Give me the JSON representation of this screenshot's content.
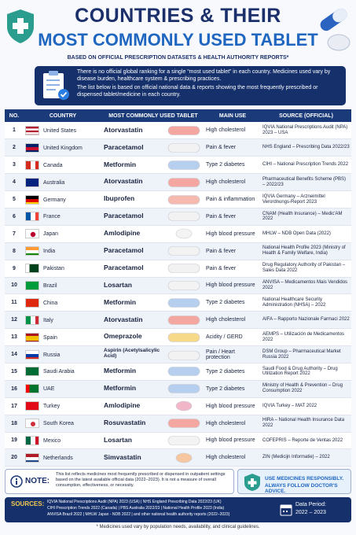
{
  "header": {
    "title_line1": "COUNTRIES & THEIR",
    "title_line2": "MOST COMMONLY USED TABLET",
    "subtitle": "BASED ON OFFICIAL PRESCRIPTION DATASETS & HEALTH AUTHORITY REPORTS*"
  },
  "info": {
    "paragraph1": "There is no official global ranking for a single “most used tablet” in each country. Medicines used vary by disease burden, healthcare system & prescribing practices.",
    "paragraph2": "The list below is based on official national data & reports showing the most frequently prescribed or dispensed tablet/medicine in each country."
  },
  "table": {
    "columns": [
      "NO.",
      "COUNTRY",
      "MOST COMMONLY USED TABLET",
      "MAIN USE",
      "SOURCE (OFFICIAL)"
    ],
    "rows": [
      [
        1,
        "United States",
        "Atorvastatin",
        "High cholesterol",
        "IQVIA National Prescriptions Audit (NPA) 2023 – USA"
      ],
      [
        2,
        "United Kingdom",
        "Paracetamol",
        "Pain & fever",
        "NHS England – Prescribing Data 2022/23"
      ],
      [
        3,
        "Canada",
        "Metformin",
        "Type 2 diabetes",
        "CIHI – National Prescription Trends 2022"
      ],
      [
        4,
        "Australia",
        "Atorvastatin",
        "High cholesterol",
        "Pharmaceutical Benefits Scheme (PBS) – 2022/23"
      ],
      [
        5,
        "Germany",
        "Ibuprofen",
        "Pain & inflammation",
        "IQVIA Germany – Arzneimittel Verordnungs-Report 2023"
      ],
      [
        6,
        "France",
        "Paracetamol",
        "Pain & fever",
        "CNAM (Health Insurance) – Medic'AM 2022"
      ],
      [
        7,
        "Japan",
        "Amlodipine",
        "High blood pressure",
        "MHLW – NDB Open Data (2022)"
      ],
      [
        8,
        "India",
        "Paracetamol",
        "Pain & fever",
        "National Health Profile 2023 (Ministry of Health & Family Welfare, India)"
      ],
      [
        9,
        "Pakistan",
        "Paracetamol",
        "Pain & fever",
        "Drug Regulatory Authority of Pakistan – Sales Data 2022"
      ],
      [
        10,
        "Brazil",
        "Losartan",
        "High blood pressure",
        "ANVISA – Medicamentos Mais Vendidos 2022"
      ],
      [
        11,
        "China",
        "Metformin",
        "Type 2 diabetes",
        "National Healthcare Security Administration (NHSA) – 2022"
      ],
      [
        12,
        "Italy",
        "Atorvastatin",
        "High cholesterol",
        "AIFA – Rapporto Nazionale Farmaci 2022"
      ],
      [
        13,
        "Spain",
        "Omeprazole",
        "Acidity / GERD",
        "AEMPS – Utilización de Medicamentos 2022"
      ],
      [
        14,
        "Russia",
        "Aspirin (Acetylsalicylic Acid)",
        "Pain / Heart protection",
        "DSM Group – Pharmaceutical Market Russia 2022"
      ],
      [
        15,
        "Saudi Arabia",
        "Metformin",
        "Type 2 diabetes",
        "Saudi Food & Drug Authority – Drug Utilization Report 2022"
      ],
      [
        16,
        "UAE",
        "Metformin",
        "Type 2 diabetes",
        "Ministry of Health & Prevention – Drug Consumption 2022"
      ],
      [
        17,
        "Turkey",
        "Amlodipine",
        "High blood pressure",
        "IQVIA Turkey – MAT 2022"
      ],
      [
        18,
        "South Korea",
        "Rosuvastatin",
        "High cholesterol",
        "HIRA – National Health Insurance Data 2022"
      ],
      [
        19,
        "Mexico",
        "Losartan",
        "High blood pressure",
        "COFEPRIS – Reporte de Ventas 2022"
      ],
      [
        20,
        "Netherlands",
        "Simvastatin",
        "High cholesterol",
        "ZIN (Medicijn Informatie) – 2022"
      ]
    ]
  },
  "note": {
    "label": "NOTE:",
    "text": "This list reflects medicines most frequently prescribed or dispensed in outpatient settings based on the latest available official data (2022–2023). It is not a measure of overall consumption, effectiveness, or necessity.",
    "advice_line1": "USE MEDICINES RESPONSIBLY.",
    "advice_line2": "ALWAYS FOLLOW DOCTOR'S ADVICE."
  },
  "sources": {
    "label": "SOURCES:",
    "lines": [
      "IQVIA National Prescriptions Audit (NPA) 2023 (USA)  |  NHS England Prescribing Data 2022/23 (UK)",
      "CIHI Prescription Trends 2022 (Canada)  |  PBS Australia 2022/23  |  National Health Profile 2023 (India)",
      "ANVISA Brazil 2022  |  MHLW Japan - NDB 2022  |  and other national health authority reports (2022–2023)"
    ],
    "period_label": "Data Period:",
    "period": "2022 – 2023"
  },
  "footer": "* Medicines used vary by population needs, availability, and clinical guidelines."
}
